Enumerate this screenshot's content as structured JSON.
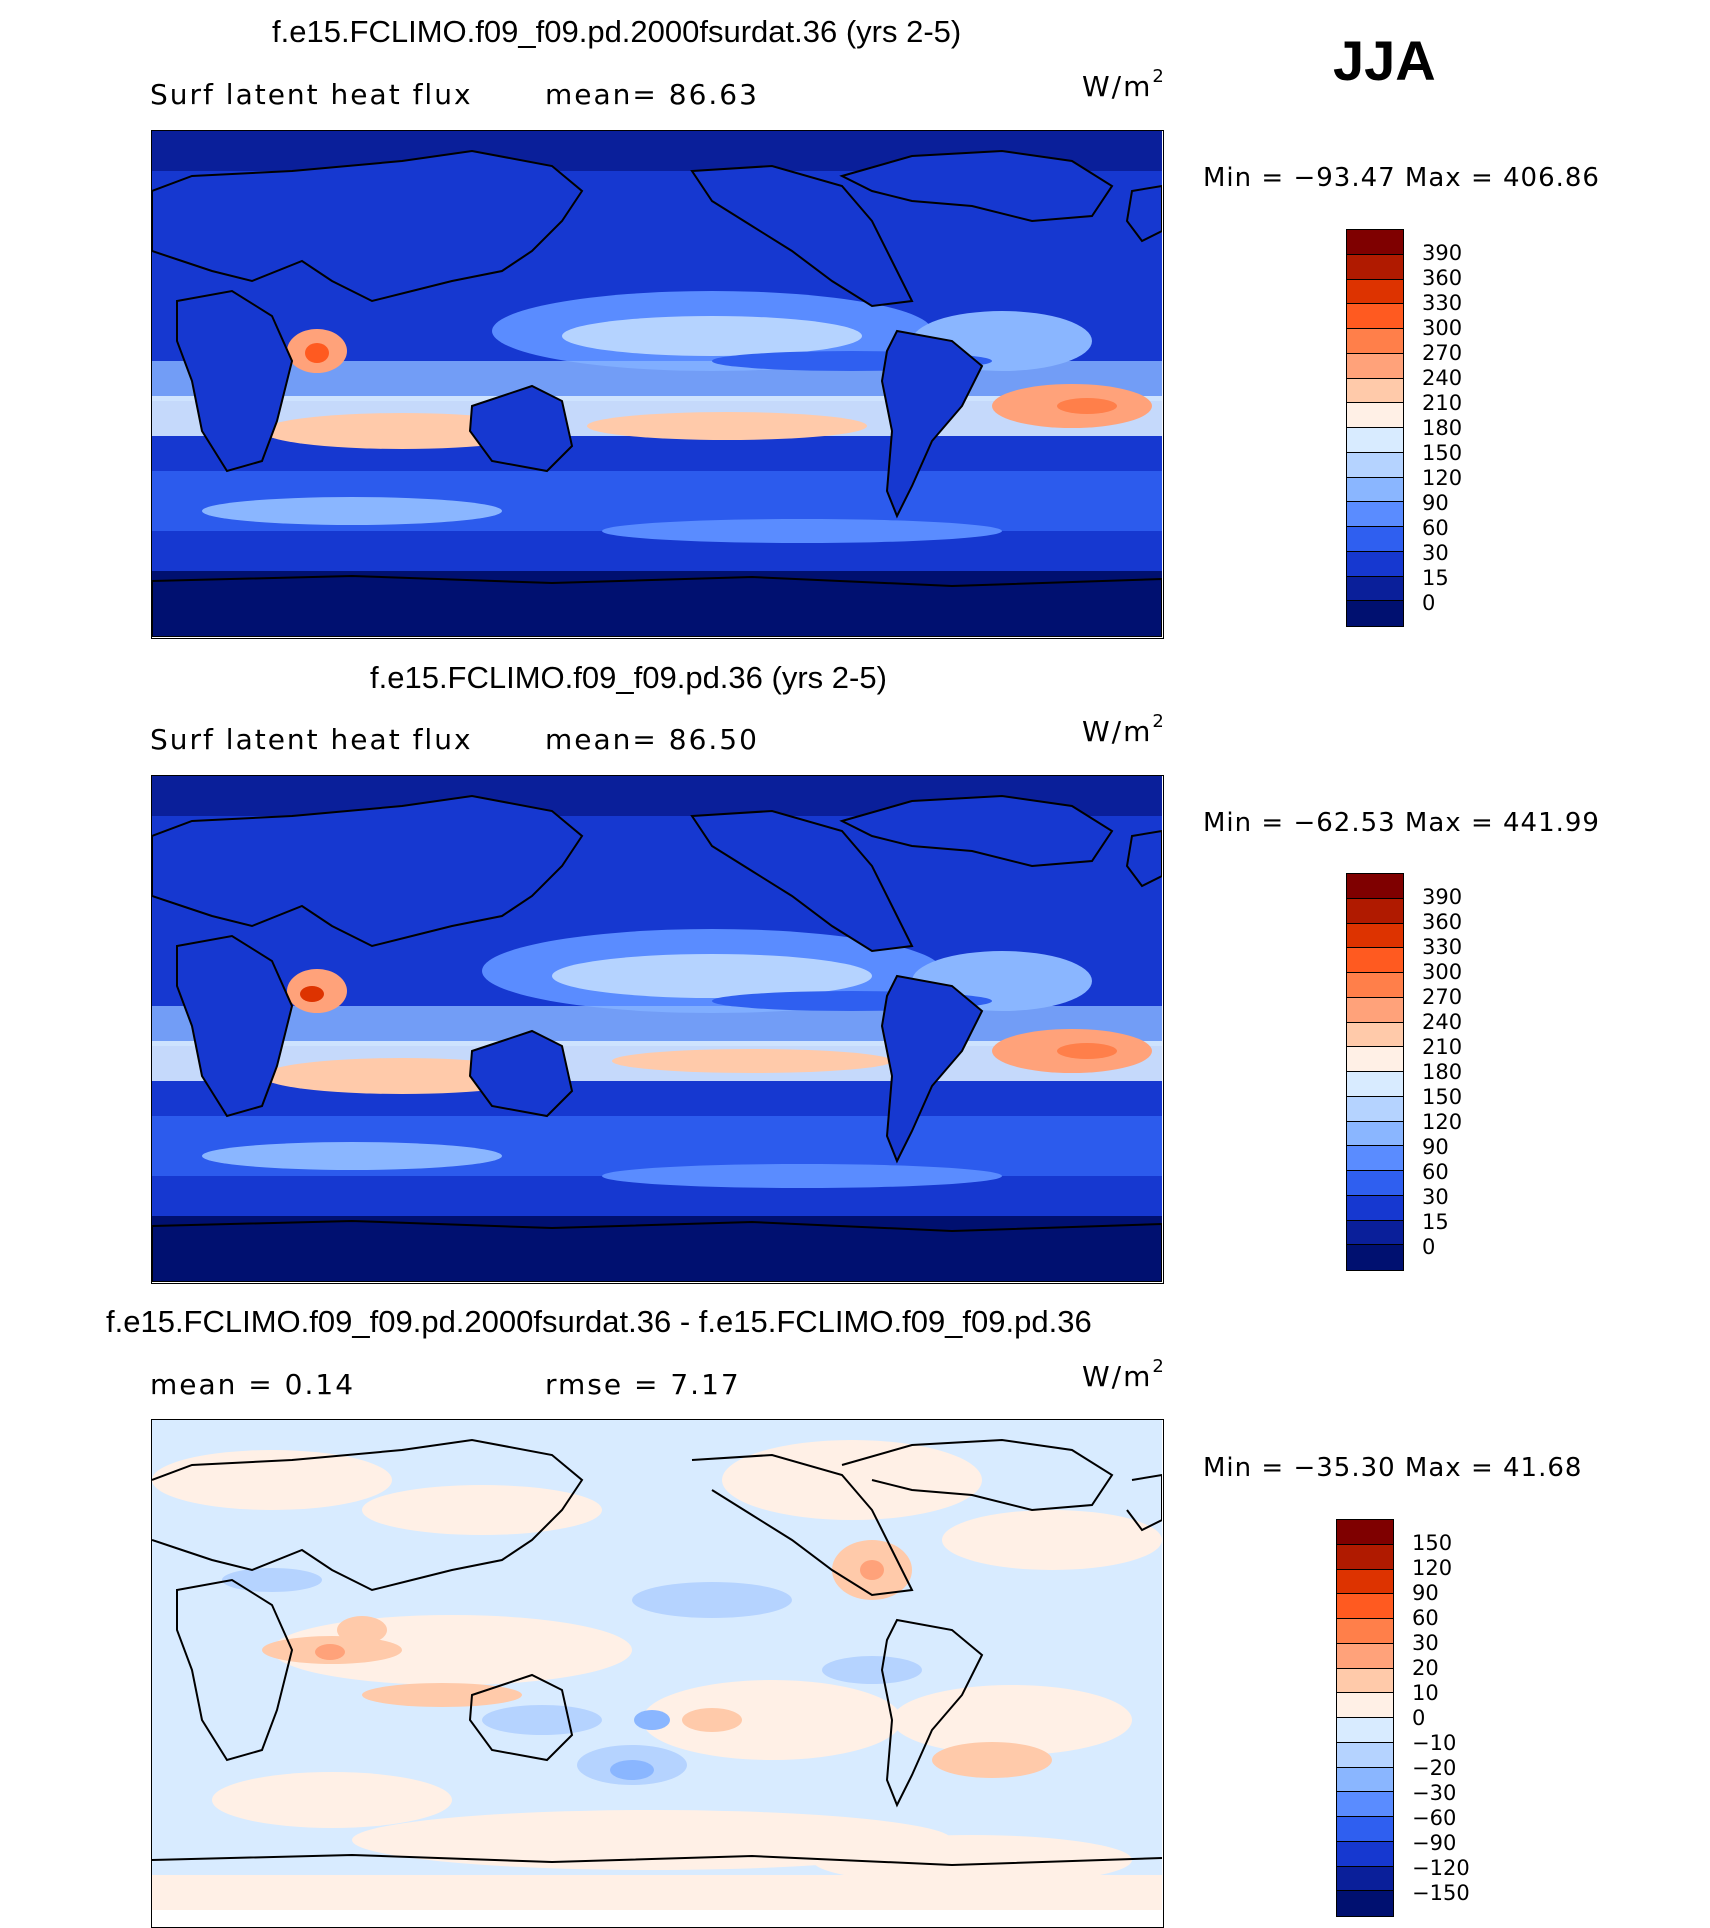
{
  "season": "JJA",
  "panels": [
    {
      "title": "f.e15.FCLIMO.f09_f09.pd.2000fsurdat.36 (yrs 2-5)",
      "left_text": "Surf latent heat flux",
      "mid_text": "mean=  86.63",
      "units_base": "W/m",
      "units_sup": "2",
      "minmax": "Min = −93.47 Max = 406.86",
      "colorbar": {
        "labels": [
          "390",
          "360",
          "330",
          "300",
          "270",
          "240",
          "210",
          "180",
          "150",
          "120",
          "90",
          "60",
          "30",
          "15",
          "0"
        ],
        "colors": [
          "#7f0000",
          "#b01a00",
          "#dd3300",
          "#ff5a20",
          "#ff7f4a",
          "#ffa27a",
          "#ffcaaa",
          "#fff0e6",
          "#d8ebff",
          "#b5d3ff",
          "#8ab6ff",
          "#5a8cff",
          "#2f5ff0",
          "#1638d0",
          "#0a1f9a",
          "#001070"
        ]
      }
    },
    {
      "title": "f.e15.FCLIMO.f09_f09.pd.36 (yrs 2-5)",
      "left_text": "Surf latent heat flux",
      "mid_text": "mean=  86.50",
      "units_base": "W/m",
      "units_sup": "2",
      "minmax": "Min = −62.53 Max = 441.99",
      "colorbar": {
        "labels": [
          "390",
          "360",
          "330",
          "300",
          "270",
          "240",
          "210",
          "180",
          "150",
          "120",
          "90",
          "60",
          "30",
          "15",
          "0"
        ],
        "colors": [
          "#7f0000",
          "#b01a00",
          "#dd3300",
          "#ff5a20",
          "#ff7f4a",
          "#ffa27a",
          "#ffcaaa",
          "#fff0e6",
          "#d8ebff",
          "#b5d3ff",
          "#8ab6ff",
          "#5a8cff",
          "#2f5ff0",
          "#1638d0",
          "#0a1f9a",
          "#001070"
        ]
      }
    },
    {
      "title": "f.e15.FCLIMO.f09_f09.pd.2000fsurdat.36 - f.e15.FCLIMO.f09_f09.pd.36",
      "left_text": "mean =   0.14",
      "mid_text": "rmse =   7.17",
      "units_base": "W/m",
      "units_sup": "2",
      "minmax": "Min = −35.30 Max =  41.68",
      "colorbar": {
        "labels": [
          "150",
          "120",
          "90",
          "60",
          "30",
          "20",
          "10",
          "0",
          "−10",
          "−20",
          "−30",
          "−60",
          "−90",
          "−120",
          "−150"
        ],
        "colors": [
          "#7f0000",
          "#b01a00",
          "#dd3300",
          "#ff5a20",
          "#ff7f4a",
          "#ffa27a",
          "#ffcaaa",
          "#fff0e6",
          "#d8ebff",
          "#b5d3ff",
          "#8ab6ff",
          "#5a8cff",
          "#2f5ff0",
          "#1638d0",
          "#0a1f9a",
          "#001070"
        ]
      }
    }
  ]
}
